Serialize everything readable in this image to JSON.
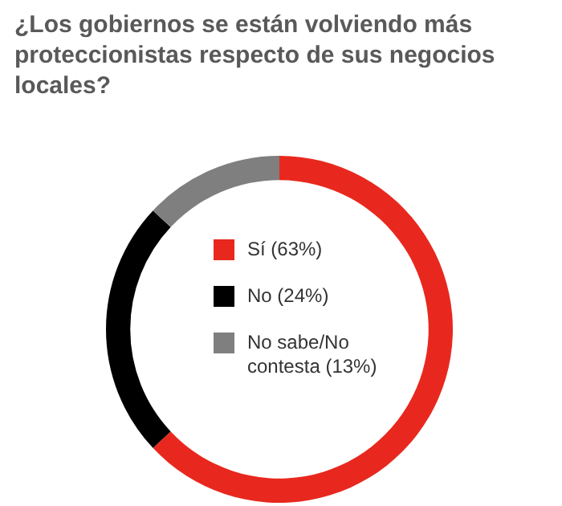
{
  "chart_data": {
    "type": "donut",
    "title": "¿Los gobiernos se están volviendo más proteccionistas respecto de sus negocios locales?",
    "categories": [
      "Sí (63%)",
      "No (24%)",
      "No sabe/No contesta (13%)"
    ],
    "values": [
      63,
      24,
      13
    ],
    "colors": [
      "#e8281e",
      "#000000",
      "#7f7f7f"
    ],
    "legend": "center"
  }
}
